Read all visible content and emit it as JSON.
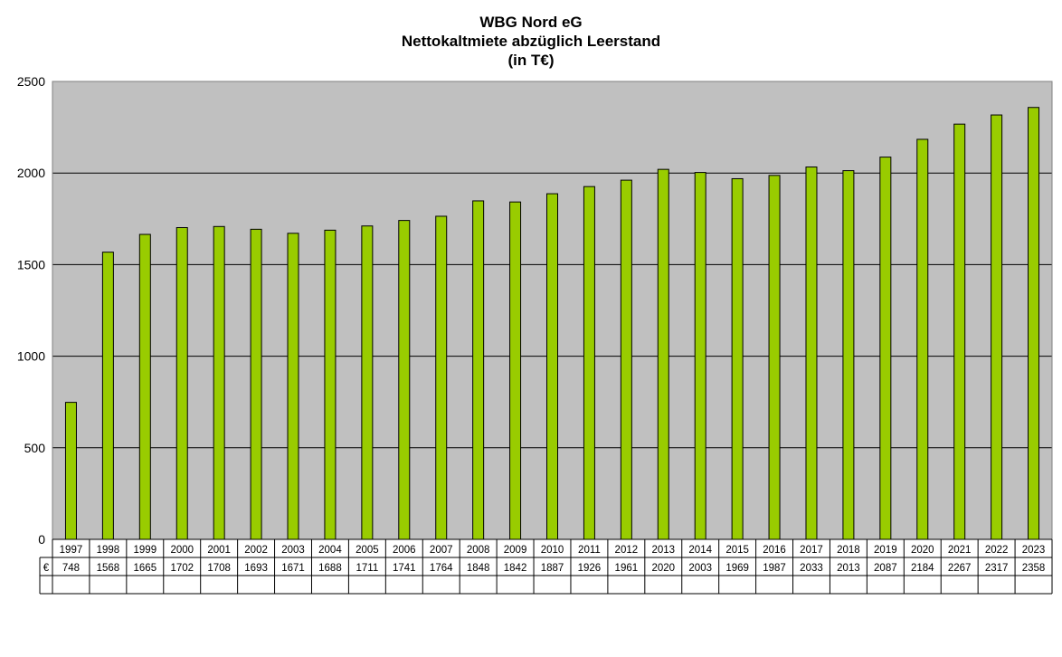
{
  "chart_data": {
    "type": "bar",
    "title_lines": [
      "WBG Nord eG",
      "Nettokaltmiete abzüglich Leerstand",
      "(in T€)"
    ],
    "categories": [
      "1997",
      "1998",
      "1999",
      "2000",
      "2001",
      "2002",
      "2003",
      "2004",
      "2005",
      "2006",
      "2007",
      "2008",
      "2009",
      "2010",
      "2011",
      "2012",
      "2013",
      "2014",
      "2015",
      "2016",
      "2017",
      "2018",
      "2019",
      "2020",
      "2021",
      "2022",
      "2023"
    ],
    "series": [
      {
        "name": "€",
        "values": [
          748,
          1568,
          1665,
          1702,
          1708,
          1693,
          1671,
          1688,
          1711,
          1741,
          1764,
          1848,
          1842,
          1887,
          1926,
          1961,
          2020,
          2003,
          1969,
          1987,
          2033,
          2013,
          2087,
          2184,
          2267,
          2317,
          2358
        ]
      }
    ],
    "ylim": [
      0,
      2500
    ],
    "yticks": [
      0,
      500,
      1000,
      1500,
      2000,
      2500
    ],
    "grid": true,
    "data_table": true,
    "legend": "none",
    "colors": {
      "bar": "#99cc00",
      "bar_border": "#000000",
      "plot_background": "#c0c0c0",
      "gridline": "#000000"
    }
  }
}
